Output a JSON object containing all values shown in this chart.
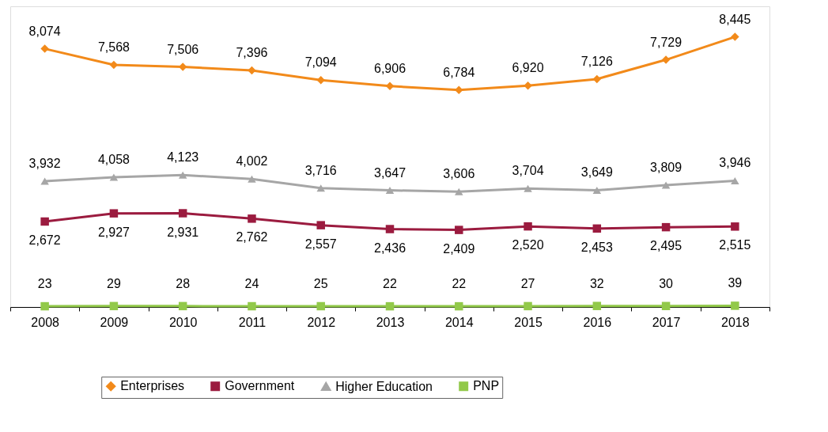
{
  "chart_data": {
    "type": "line",
    "categories": [
      "2008",
      "2009",
      "2010",
      "2011",
      "2012",
      "2013",
      "2014",
      "2015",
      "2016",
      "2017",
      "2018"
    ],
    "series": [
      {
        "name": "Enterprises",
        "color": "#f28a1a",
        "marker": "diamond",
        "values": [
          8074,
          7568,
          7506,
          7396,
          7094,
          6906,
          6784,
          6920,
          7126,
          7729,
          8445
        ],
        "value_labels": [
          "8,074",
          "7,568",
          "7,506",
          "7,396",
          "7,094",
          "6,906",
          "6,784",
          "6,920",
          "7,126",
          "7,729",
          "8,445"
        ]
      },
      {
        "name": "Government",
        "color": "#9b1b3f",
        "marker": "square",
        "values": [
          2672,
          2927,
          2931,
          2762,
          2557,
          2436,
          2409,
          2520,
          2453,
          2495,
          2515
        ],
        "value_labels": [
          "2,672",
          "2,927",
          "2,931",
          "2,762",
          "2,557",
          "2,436",
          "2,409",
          "2,520",
          "2,453",
          "2,495",
          "2,515"
        ]
      },
      {
        "name": "Higher Education",
        "color": "#a6a6a6",
        "marker": "triangle",
        "values": [
          3932,
          4058,
          4123,
          4002,
          3716,
          3647,
          3606,
          3704,
          3649,
          3809,
          3946
        ],
        "value_labels": [
          "3,932",
          "4,058",
          "4,123",
          "4,002",
          "3,716",
          "3,647",
          "3,606",
          "3,704",
          "3,649",
          "3,809",
          "3,946"
        ]
      },
      {
        "name": "PNP",
        "color": "#92c94a",
        "marker": "square",
        "values": [
          23,
          29,
          28,
          24,
          25,
          22,
          22,
          27,
          32,
          30,
          39
        ],
        "value_labels": [
          "23",
          "29",
          "28",
          "24",
          "25",
          "22",
          "22",
          "27",
          "32",
          "30",
          "39"
        ]
      }
    ],
    "ylim": [
      0,
      9400
    ],
    "legend": "bottom",
    "tick_labels": "x",
    "line_style": "solid"
  }
}
